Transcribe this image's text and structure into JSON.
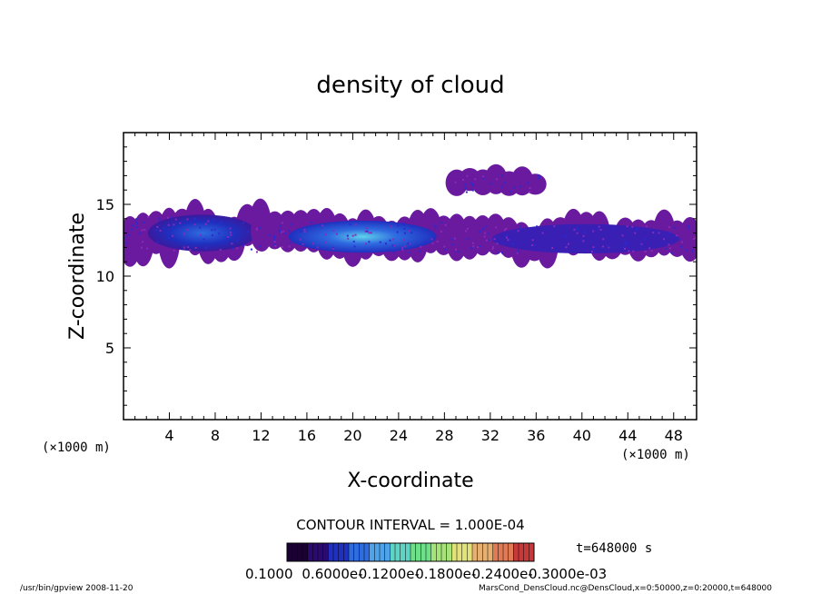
{
  "chart_data": {
    "type": "heatmap",
    "title": "density of cloud",
    "xlabel": "X-coordinate",
    "ylabel": "Z-coordinate",
    "x_unit_left": "(×1000 m)",
    "x_unit_right": "(×1000 m)",
    "xlim": [
      0,
      50
    ],
    "ylim": [
      0,
      20
    ],
    "x_ticks": [
      4,
      8,
      12,
      16,
      20,
      24,
      28,
      32,
      36,
      40,
      44,
      48
    ],
    "y_ticks": [
      5,
      10,
      15
    ],
    "contour_interval_label": "CONTOUR INTERVAL = 1.000E-04",
    "time_label": "t=648000 s",
    "colorbar_labels": [
      "0.1000",
      "0.6000e-",
      "0.1200e-",
      "0.1800e-",
      "0.2400e-",
      "0.3000e-03"
    ],
    "colorbar_colors": [
      "#1a0033",
      "#2a0a6e",
      "#1f2fbf",
      "#2f6ce0",
      "#4fa3ea",
      "#5fd3c4",
      "#6fe08a",
      "#a6e47a",
      "#e2e27a",
      "#e5b070",
      "#e07a55",
      "#c73838"
    ],
    "footer_left": "/usr/bin/gpview  2008-11-20",
    "footer_right": "MarsCond_DensCloud.nc@DensCloud,x=0:50000,z=0:20000,t=648000",
    "cloud_regions": [
      {
        "name": "upper-isolated-cloud",
        "x": [
          28.5,
          36.5
        ],
        "z": [
          15.5,
          17.5
        ],
        "level": "low"
      },
      {
        "name": "left-cloud-band",
        "x": [
          0,
          12.5
        ],
        "z": [
          11.0,
          15.0
        ],
        "level": "medium"
      },
      {
        "name": "central-cloud-band",
        "x": [
          11.5,
          28.5
        ],
        "z": [
          11.0,
          14.5
        ],
        "level": "high"
      },
      {
        "name": "right-cloud-band",
        "x": [
          28.5,
          50
        ],
        "z": [
          11.0,
          14.2
        ],
        "level": "low-medium"
      }
    ]
  }
}
